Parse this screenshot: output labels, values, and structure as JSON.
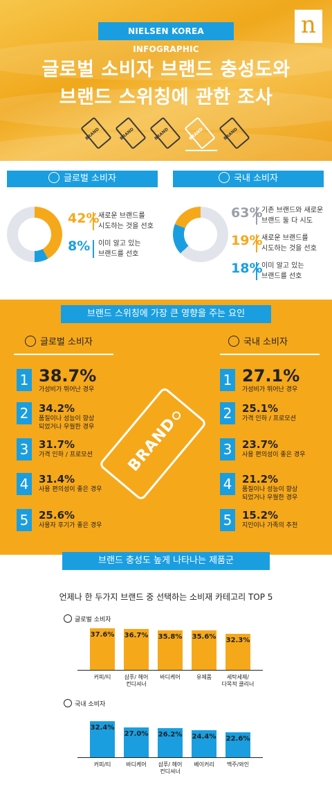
{
  "header": {
    "badge": "NIELSEN KOREA INFOGRAPHIC",
    "logo_letter": "n",
    "title_line1": "글로벌 소비자 브랜드 충성도와",
    "title_line2": "브랜드 스위칭에 관한 조사",
    "tag_word": "BRAND"
  },
  "section1": {
    "global_label": "글로벌 소비자",
    "korea_label": "국내 소비자",
    "global_stats": [
      {
        "pct": "42%",
        "line1": "새로운 브랜드를",
        "line2": "시도하는 것을 선호"
      },
      {
        "pct": "8%",
        "line1": "이미 알고 있는",
        "line2": "브랜드를 선호"
      }
    ],
    "korea_stats": [
      {
        "pct": "63%",
        "line1": "기존 브랜드와 새로운",
        "line2": "브랜드 둘 다 시도"
      },
      {
        "pct": "19%",
        "line1": "새로운 브랜드를",
        "line2": "시도하는 것을 선호"
      },
      {
        "pct": "18%",
        "line1": "이미 알고 있는",
        "line2": "브랜드를 선호"
      }
    ],
    "global_donut": {
      "new": 42,
      "known": 8
    },
    "korea_donut": {
      "both": 63,
      "new": 19,
      "known": 18
    }
  },
  "section2": {
    "title": "브랜드 스위칭에 가장 큰 영향을 주는 요인",
    "global_head": "글로벌 소비자",
    "korea_head": "국내 소비자",
    "center_tag": "BRAND",
    "global_ranks": [
      {
        "num": "1",
        "pct": "38.7%",
        "l1": "가성비가 뛰어난 경우",
        "l2": ""
      },
      {
        "num": "2",
        "pct": "34.2%",
        "l1": "품질이나 성능이 향상",
        "l2": "되었거나 우월한 경우"
      },
      {
        "num": "3",
        "pct": "31.7%",
        "l1": "가격 인하 / 프로모션",
        "l2": ""
      },
      {
        "num": "4",
        "pct": "31.4%",
        "l1": "사용 편의성이 좋은 경우",
        "l2": ""
      },
      {
        "num": "5",
        "pct": "25.6%",
        "l1": "사용자 후기가 좋은 경우",
        "l2": ""
      }
    ],
    "korea_ranks": [
      {
        "num": "1",
        "pct": "27.1%",
        "l1": "가성비가 뛰어난 경우",
        "l2": ""
      },
      {
        "num": "2",
        "pct": "25.1%",
        "l1": "가격 인하 / 프로모션",
        "l2": ""
      },
      {
        "num": "3",
        "pct": "23.7%",
        "l1": "사용 편의성이 좋은 경우",
        "l2": ""
      },
      {
        "num": "4",
        "pct": "21.2%",
        "l1": "품질이나 성능이 향상",
        "l2": "되었거나 우월한 경우"
      },
      {
        "num": "5",
        "pct": "15.2%",
        "l1": "지인이나 가족의 추천",
        "l2": ""
      }
    ]
  },
  "section3": {
    "title": "브랜드 충성도 높게 나타나는 제품군",
    "subtitle": "언제나 한 두가지 브랜드 중 선택하는 소비재 카테고리 TOP 5",
    "global_label": "글로벌 소비자",
    "korea_label": "국내 소비자"
  },
  "chart_data": [
    {
      "type": "bar",
      "series_label": "글로벌 소비자",
      "categories": [
        [
          "커피/티"
        ],
        [
          "샴푸/ 헤어",
          "컨디셔너"
        ],
        [
          "바디케어"
        ],
        [
          "유제품"
        ],
        [
          "세탁세제/",
          "다목적 클리너"
        ]
      ],
      "values": [
        37.6,
        36.7,
        35.8,
        35.6,
        32.3
      ],
      "labels": [
        "37.6%",
        "36.7%",
        "35.8%",
        "35.6%",
        "32.3%"
      ],
      "color": "#f6a81b"
    },
    {
      "type": "bar",
      "series_label": "국내 소비자",
      "categories": [
        [
          "커피/티"
        ],
        [
          "바디케어"
        ],
        [
          "샴푸/ 헤어",
          "컨디셔너"
        ],
        [
          "베이커리"
        ],
        [
          "맥주/와인"
        ]
      ],
      "values": [
        32.4,
        27.0,
        26.2,
        24.4,
        22.6
      ],
      "labels": [
        "32.4%",
        "27.0%",
        "26.2%",
        "24.4%",
        "22.6%"
      ],
      "color": "#1a9ee0"
    }
  ]
}
